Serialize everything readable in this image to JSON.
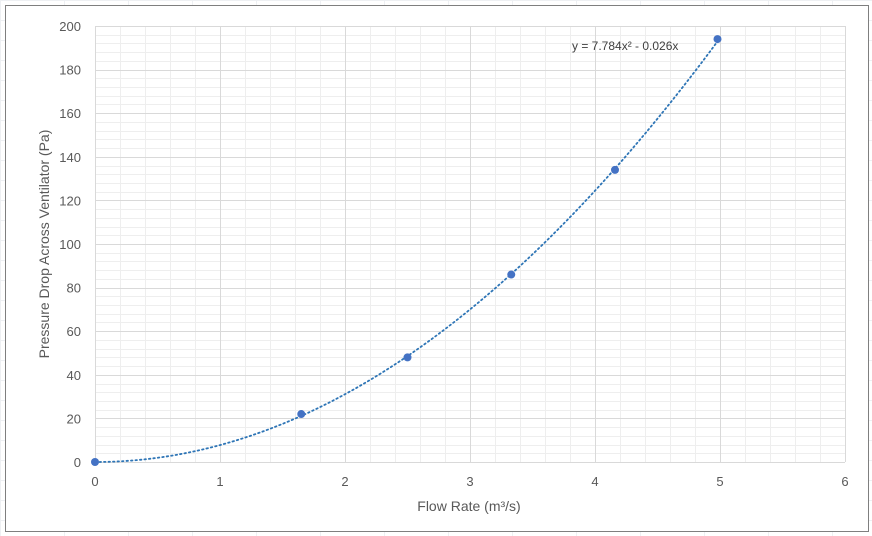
{
  "chart_data": {
    "type": "scatter",
    "title": "",
    "xlabel": "Flow Rate (m³/s)",
    "ylabel": "Pressure Drop Across Ventilator (Pa)",
    "xlim": [
      0,
      6
    ],
    "ylim": [
      0,
      200
    ],
    "x_ticks": [
      "0",
      "1",
      "2",
      "3",
      "4",
      "5",
      "6"
    ],
    "y_ticks": [
      "0",
      "20",
      "40",
      "60",
      "80",
      "100",
      "120",
      "140",
      "160",
      "180",
      "200"
    ],
    "grid": true,
    "legend": "none",
    "series": [
      {
        "points": [
          {
            "x": 0,
            "y": 0
          },
          {
            "x": 1.65,
            "y": 22
          },
          {
            "x": 2.5,
            "y": 48
          },
          {
            "x": 3.33,
            "y": 86
          },
          {
            "x": 4.16,
            "y": 134
          },
          {
            "x": 4.98,
            "y": 194
          }
        ],
        "color": "#4472c4"
      }
    ],
    "trendline": {
      "type": "polynomial",
      "a": 7.784,
      "b": -0.026,
      "c": 0,
      "x_range": [
        0,
        4.98
      ],
      "equation_label": "y = 7.784x² - 0.026x",
      "color": "#2e75b6"
    }
  }
}
